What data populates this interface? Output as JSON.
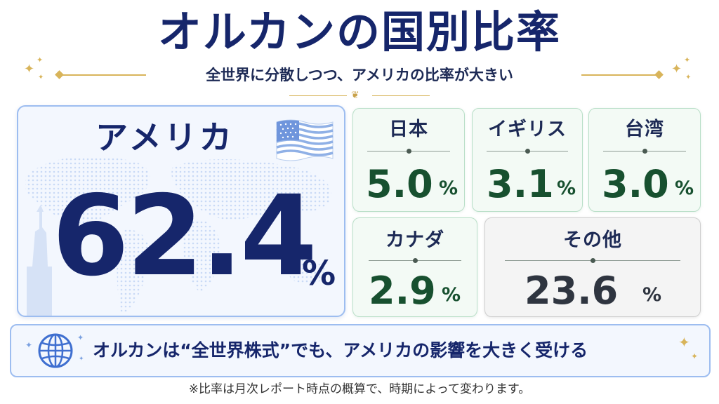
{
  "header": {
    "title": "オルカンの国別比率",
    "subtitle": "全世界に分散しつつ、アメリカの比率が大きい"
  },
  "featured": {
    "name": "アメリカ",
    "value": "62.4",
    "unit": "%",
    "icon": "us-flag-icon"
  },
  "countries": [
    {
      "name": "日本",
      "value": "5.0",
      "unit": "%"
    },
    {
      "name": "イギリス",
      "value": "3.1",
      "unit": "%"
    },
    {
      "name": "台湾",
      "value": "3.0",
      "unit": "%"
    },
    {
      "name": "カナダ",
      "value": "2.9",
      "unit": "%"
    },
    {
      "name": "その他",
      "value": "23.6",
      "unit": "%"
    }
  ],
  "banner": {
    "text": "オルカンは“全世界株式”でも、アメリカの影響を大きく受ける",
    "icon": "globe-icon"
  },
  "footnote": "※比率は月次レポート時点の概算で、時期によって変わります。",
  "colors": {
    "title": "#16266b",
    "accent_gold": "#d8b45a",
    "usa_card_border": "#9dbdf0",
    "country_value": "#17502f",
    "other_value": "#2f3540"
  }
}
